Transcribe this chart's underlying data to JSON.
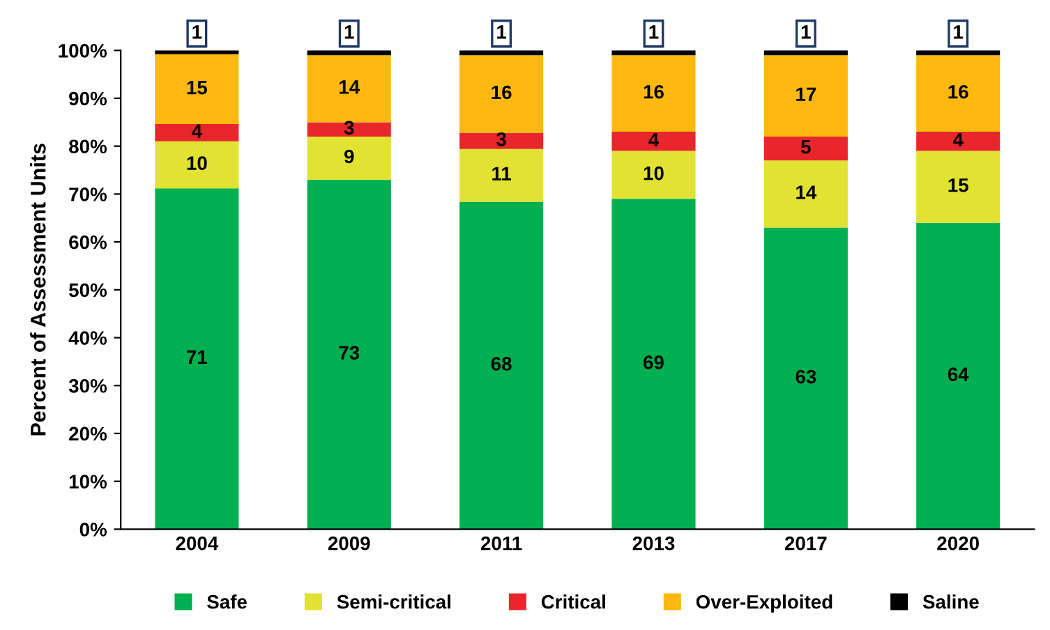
{
  "chart_data": {
    "type": "bar",
    "stacked": true,
    "ylabel": "Percent of Assessment Units",
    "categories": [
      "2004",
      "2009",
      "2011",
      "2013",
      "2017",
      "2020"
    ],
    "series": [
      {
        "name": "Safe",
        "color": "#00b050",
        "values": [
          71.2,
          73,
          68.4,
          69,
          63,
          64
        ],
        "value_labels": [
          "71",
          "73",
          "68",
          "69",
          "63",
          "64"
        ]
      },
      {
        "name": "Semi-critical",
        "color": "#e2e232",
        "values": [
          9.8,
          9,
          11,
          10,
          14,
          15
        ],
        "value_labels": [
          "10",
          "9",
          "11",
          "10",
          "14",
          "15"
        ]
      },
      {
        "name": "Critical",
        "color": "#e8262b",
        "values": [
          3.6,
          3,
          3.4,
          4,
          5,
          4
        ],
        "value_labels": [
          "4",
          "3",
          "3",
          "4",
          "5",
          "4"
        ]
      },
      {
        "name": "Over-Exploited",
        "color": "#ffb80f",
        "values": [
          14.6,
          14,
          16.2,
          16,
          17,
          16
        ],
        "value_labels": [
          "15",
          "14",
          "16",
          "16",
          "17",
          "16"
        ]
      },
      {
        "name": "Saline",
        "color": "#000000",
        "values": [
          0.8,
          1,
          1,
          1,
          1,
          1
        ],
        "value_labels": [
          "1",
          "1",
          "1",
          "1",
          "1",
          "1"
        ]
      }
    ],
    "ylim": [
      0,
      100
    ],
    "yticks": [
      {
        "value": 0,
        "label": "0%"
      },
      {
        "value": 10,
        "label": "10%"
      },
      {
        "value": 20,
        "label": "20%"
      },
      {
        "value": 30,
        "label": "30%"
      },
      {
        "value": 40,
        "label": "40%"
      },
      {
        "value": 50,
        "label": "50%"
      },
      {
        "value": 60,
        "label": "60%"
      },
      {
        "value": 70,
        "label": "70%"
      },
      {
        "value": 80,
        "label": "80%"
      },
      {
        "value": 90,
        "label": "90%"
      },
      {
        "value": 100,
        "label": "100%"
      }
    ],
    "legend": "bottom"
  }
}
